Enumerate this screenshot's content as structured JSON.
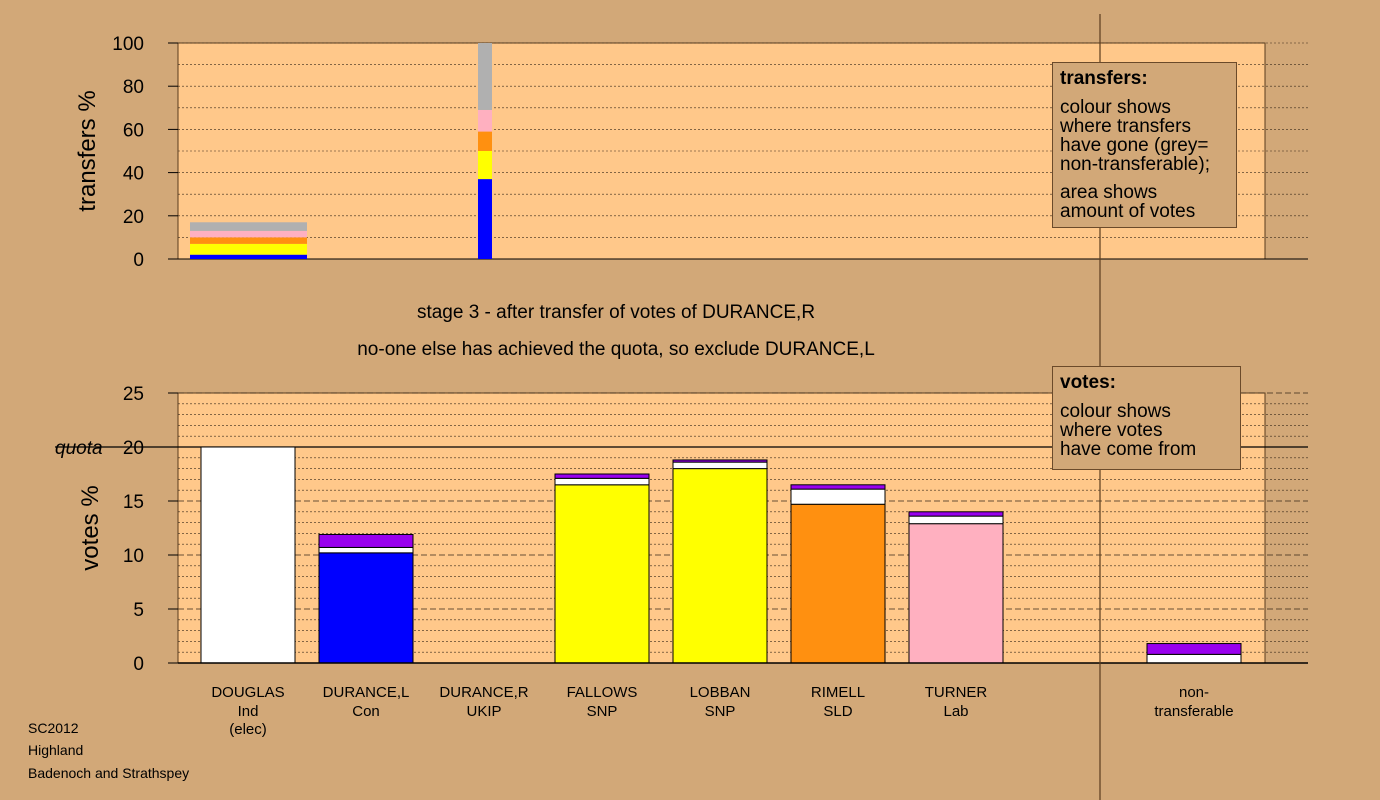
{
  "header": {
    "stage_text": "stage 3 - after transfer of votes of DURANCE,R",
    "status_text": "no-one else has achieved the quota, so exclude DURANCE,L"
  },
  "legends": {
    "transfers": {
      "title": "transfers:",
      "lines1": "colour shows\nwhere transfers\nhave gone (grey=\nnon-transferable);",
      "lines2": "area shows\namount of votes"
    },
    "votes": {
      "title": "votes:",
      "lines1": "colour shows\nwhere votes\nhave come from"
    }
  },
  "footer": {
    "line1": "SC2012",
    "line2": "Highland",
    "line3": "Badenoch and Strathspey"
  },
  "colors": {
    "background": "#d2a878",
    "plot_bg": "#ffc88a",
    "Ind": "#ffffff",
    "Con": "#0000ff",
    "SNP": "#ffff00",
    "SLD": "#ff9010",
    "Lab": "#ffb0c0",
    "UKIP": "#9900ee",
    "nontransferable": "#b0b0b0"
  },
  "chart_data": [
    {
      "type": "bar",
      "stacked": true,
      "ylabel": "transfers %",
      "ylim": [
        0,
        100
      ],
      "yticks": [
        0,
        20,
        40,
        60,
        80,
        100
      ],
      "grid": "dotted",
      "bars": [
        {
          "position": "DOUGLAS",
          "segments": [
            {
              "party": "Con",
              "value": 2
            },
            {
              "party": "SNP",
              "value": 5
            },
            {
              "party": "SLD",
              "value": 3
            },
            {
              "party": "Lab",
              "value": 3
            },
            {
              "party": "nontransferable",
              "value": 4
            }
          ]
        },
        {
          "position": "DURANCE,R",
          "segments": [
            {
              "party": "Con",
              "value": 37
            },
            {
              "party": "SNP",
              "value": 13
            },
            {
              "party": "SLD",
              "value": 9
            },
            {
              "party": "Lab",
              "value": 10
            },
            {
              "party": "nontransferable",
              "value": 31
            }
          ]
        }
      ]
    },
    {
      "type": "bar",
      "stacked": true,
      "ylabel": "votes %",
      "ylim": [
        0,
        25
      ],
      "yticks": [
        0,
        5,
        10,
        15,
        20,
        25
      ],
      "quota": 20,
      "quota_label": "quota",
      "grid": "dotted",
      "categories": [
        {
          "name": "DOUGLAS",
          "party": "Ind",
          "note": "(elec)"
        },
        {
          "name": "DURANCE,L",
          "party": "Con",
          "note": ""
        },
        {
          "name": "DURANCE,R",
          "party": "UKIP",
          "note": ""
        },
        {
          "name": "FALLOWS",
          "party": "SNP",
          "note": ""
        },
        {
          "name": "LOBBAN",
          "party": "SNP",
          "note": ""
        },
        {
          "name": "RIMELL",
          "party": "SLD",
          "note": ""
        },
        {
          "name": "TURNER",
          "party": "Lab",
          "note": ""
        },
        {
          "name": "non-",
          "party": "transferable",
          "note": ""
        }
      ],
      "stacks": [
        [
          {
            "from": "Ind",
            "value": 20.0
          }
        ],
        [
          {
            "from": "Con",
            "value": 10.2
          },
          {
            "from": "Ind",
            "value": 0.5
          },
          {
            "from": "UKIP",
            "value": 1.2
          }
        ],
        [],
        [
          {
            "from": "SNP",
            "value": 16.5
          },
          {
            "from": "Ind",
            "value": 0.6
          },
          {
            "from": "UKIP",
            "value": 0.4
          }
        ],
        [
          {
            "from": "SNP",
            "value": 18.0
          },
          {
            "from": "Ind",
            "value": 0.6
          },
          {
            "from": "UKIP",
            "value": 0.2
          }
        ],
        [
          {
            "from": "SLD",
            "value": 14.7
          },
          {
            "from": "Ind",
            "value": 1.4
          },
          {
            "from": "UKIP",
            "value": 0.4
          }
        ],
        [
          {
            "from": "Lab",
            "value": 12.9
          },
          {
            "from": "Ind",
            "value": 0.7
          },
          {
            "from": "UKIP",
            "value": 0.4
          }
        ],
        [
          {
            "from": "Ind",
            "value": 0.8
          },
          {
            "from": "UKIP",
            "value": 1.0
          }
        ]
      ]
    }
  ]
}
